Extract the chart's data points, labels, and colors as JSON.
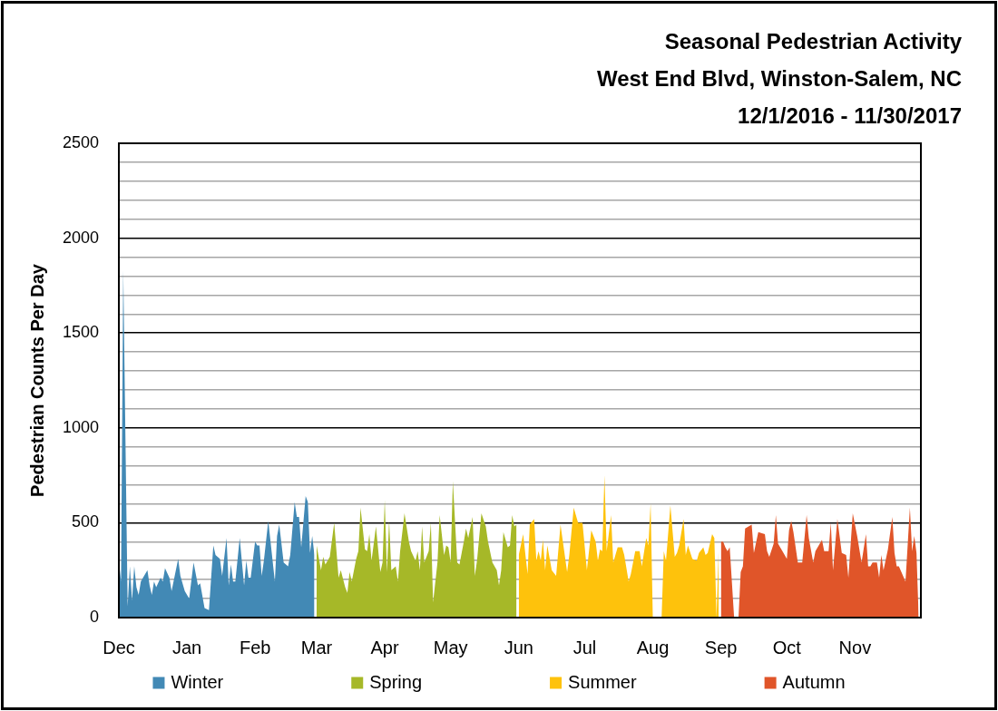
{
  "chart_data": {
    "type": "area",
    "title": "Seasonal Pedestrian Activity\nWest End Blvd, Winston-Salem, NC\n12/1/2016 - 11/30/2017",
    "ylabel": "Pedestrian Counts Per Day",
    "xlim": [
      "2016-12-01",
      "2017-12-01"
    ],
    "xticks": [
      {
        "value": "2016-12-01",
        "label": "Dec"
      },
      {
        "value": "2017-01-01",
        "label": "Jan"
      },
      {
        "value": "2017-02-01",
        "label": "Feb"
      },
      {
        "value": "2017-03-01",
        "label": "Mar"
      },
      {
        "value": "2017-04-01",
        "label": "Apr"
      },
      {
        "value": "2017-05-01",
        "label": "May"
      },
      {
        "value": "2017-06-01",
        "label": "Jun"
      },
      {
        "value": "2017-07-01",
        "label": "Jul"
      },
      {
        "value": "2017-08-01",
        "label": "Aug"
      },
      {
        "value": "2017-09-01",
        "label": "Sep"
      },
      {
        "value": "2017-10-01",
        "label": "Oct"
      },
      {
        "value": "2017-11-01",
        "label": "Nov"
      }
    ],
    "ylim": [
      0,
      2500
    ],
    "yticks": [
      0,
      {
        "value": 100,
        "label": null
      },
      {
        "value": 200,
        "label": null
      },
      {
        "value": 300,
        "label": null
      },
      {
        "value": 400,
        "label": null
      },
      500,
      {
        "value": 600,
        "label": null
      },
      {
        "value": 700,
        "label": null
      },
      {
        "value": 800,
        "label": null
      },
      {
        "value": 900,
        "label": null
      },
      1000,
      {
        "value": 1100,
        "label": null
      },
      {
        "value": 1200,
        "label": null
      },
      {
        "value": 1300,
        "label": null
      },
      {
        "value": 1400,
        "label": null
      },
      1500,
      {
        "value": 1600,
        "label": null
      },
      {
        "value": 1700,
        "label": null
      },
      {
        "value": 1800,
        "label": null
      },
      {
        "value": 1900,
        "label": null
      },
      2000,
      {
        "value": 2100,
        "label": null
      },
      {
        "value": 2200,
        "label": null
      },
      {
        "value": 2300,
        "label": null
      },
      {
        "value": 2400,
        "label": null
      },
      2500
    ],
    "grid": "y",
    "legend": "bottom",
    "series": [
      {
        "name": "Winter",
        "color": "#4289b5",
        "x": [
          "2016-12-01",
          "2016-12-02",
          "2016-12-03",
          "2016-12-05",
          "2016-12-06",
          "2016-12-07",
          "2016-12-08",
          "2016-12-09",
          "2016-12-10",
          "2016-12-11",
          "2016-12-12",
          "2016-12-14",
          "2016-12-15",
          "2016-12-16",
          "2016-12-17",
          "2016-12-18",
          "2016-12-20",
          "2016-12-21",
          "2016-12-22",
          "2016-12-24",
          "2016-12-25",
          "2016-12-28",
          "2016-12-29",
          "2016-12-31",
          "2017-01-02",
          "2017-01-04",
          "2017-01-06",
          "2017-01-07",
          "2017-01-09",
          "2017-01-11",
          "2017-01-13",
          "2017-01-14",
          "2017-01-16",
          "2017-01-17",
          "2017-01-19",
          "2017-01-20",
          "2017-01-21",
          "2017-01-22",
          "2017-01-23",
          "2017-01-25",
          "2017-01-27",
          "2017-01-28",
          "2017-01-29",
          "2017-01-30",
          "2017-02-01",
          "2017-02-02",
          "2017-02-03",
          "2017-02-04",
          "2017-02-05",
          "2017-02-07",
          "2017-02-10",
          "2017-02-11",
          "2017-02-12",
          "2017-02-14",
          "2017-02-16",
          "2017-02-17",
          "2017-02-19",
          "2017-02-20",
          "2017-02-21",
          "2017-02-22",
          "2017-02-24",
          "2017-02-25",
          "2017-02-26",
          "2017-02-27",
          "2017-02-28"
        ],
        "values": [
          300,
          190,
          1830,
          60,
          270,
          90,
          270,
          160,
          120,
          190,
          210,
          250,
          170,
          120,
          190,
          160,
          210,
          190,
          260,
          210,
          140,
          310,
          220,
          140,
          100,
          290,
          170,
          180,
          50,
          40,
          380,
          330,
          310,
          220,
          420,
          170,
          280,
          190,
          190,
          420,
          170,
          300,
          210,
          210,
          400,
          380,
          380,
          220,
          300,
          510,
          190,
          430,
          490,
          290,
          270,
          330,
          610,
          530,
          530,
          370,
          640,
          610,
          340,
          430,
          330
        ]
      },
      {
        "name": "Spring",
        "color": "#a6b828",
        "x": [
          "2017-03-01",
          "2017-03-03",
          "2017-03-04",
          "2017-03-05",
          "2017-03-07",
          "2017-03-09",
          "2017-03-11",
          "2017-03-12",
          "2017-03-14",
          "2017-03-15",
          "2017-03-16",
          "2017-03-17",
          "2017-03-19",
          "2017-03-20",
          "2017-03-21",
          "2017-03-23",
          "2017-03-24",
          "2017-03-25",
          "2017-03-26",
          "2017-03-28",
          "2017-03-30",
          "2017-03-31",
          "2017-04-01",
          "2017-04-02",
          "2017-04-03",
          "2017-04-04",
          "2017-04-06",
          "2017-04-07",
          "2017-04-08",
          "2017-04-10",
          "2017-04-12",
          "2017-04-13",
          "2017-04-15",
          "2017-04-16",
          "2017-04-17",
          "2017-04-18",
          "2017-04-19",
          "2017-04-21",
          "2017-04-22",
          "2017-04-23",
          "2017-04-25",
          "2017-04-26",
          "2017-04-28",
          "2017-04-29",
          "2017-04-30",
          "2017-05-01",
          "2017-05-02",
          "2017-05-04",
          "2017-05-05",
          "2017-05-07",
          "2017-05-08",
          "2017-05-09",
          "2017-05-11",
          "2017-05-12",
          "2017-05-13",
          "2017-05-15",
          "2017-05-17",
          "2017-05-18",
          "2017-05-20",
          "2017-05-22",
          "2017-05-23",
          "2017-05-24",
          "2017-05-25",
          "2017-05-27",
          "2017-05-28",
          "2017-05-29",
          "2017-05-30",
          "2017-05-31"
        ],
        "values": [
          380,
          250,
          320,
          280,
          320,
          500,
          210,
          250,
          160,
          130,
          240,
          190,
          310,
          350,
          580,
          360,
          350,
          440,
          300,
          480,
          240,
          290,
          620,
          240,
          510,
          250,
          270,
          190,
          350,
          550,
          400,
          350,
          300,
          350,
          250,
          480,
          290,
          350,
          500,
          80,
          290,
          540,
          330,
          380,
          370,
          290,
          720,
          290,
          280,
          400,
          470,
          420,
          530,
          220,
          300,
          550,
          480,
          400,
          290,
          250,
          170,
          250,
          450,
          370,
          380,
          540,
          480,
          490
        ]
      },
      {
        "name": "Summer",
        "color": "#fec20c",
        "x": [
          "2017-06-01",
          "2017-06-03",
          "2017-06-05",
          "2017-06-06",
          "2017-06-08",
          "2017-06-09",
          "2017-06-10",
          "2017-06-11",
          "2017-06-12",
          "2017-06-13",
          "2017-06-14",
          "2017-06-16",
          "2017-06-18",
          "2017-06-20",
          "2017-06-23",
          "2017-06-24",
          "2017-06-26",
          "2017-06-28",
          "2017-06-30",
          "2017-07-02",
          "2017-07-04",
          "2017-07-06",
          "2017-07-07",
          "2017-07-08",
          "2017-07-09",
          "2017-07-10",
          "2017-07-11",
          "2017-07-13",
          "2017-07-14",
          "2017-07-16",
          "2017-07-18",
          "2017-07-19",
          "2017-07-21",
          "2017-07-22",
          "2017-07-24",
          "2017-07-26",
          "2017-07-27",
          "2017-07-29",
          "2017-07-30",
          "2017-07-31",
          "2017-08-01",
          "2017-08-05",
          "2017-08-06",
          "2017-08-07",
          "2017-08-09",
          "2017-08-11",
          "2017-08-12",
          "2017-08-13",
          "2017-08-15",
          "2017-08-16",
          "2017-08-17",
          "2017-08-19",
          "2017-08-21",
          "2017-08-22",
          "2017-08-24",
          "2017-08-25",
          "2017-08-26",
          "2017-08-28",
          "2017-08-29",
          "2017-08-30",
          "2017-08-31"
        ],
        "values": [
          330,
          440,
          230,
          490,
          520,
          300,
          350,
          300,
          410,
          250,
          380,
          250,
          220,
          490,
          240,
          330,
          580,
          500,
          500,
          250,
          460,
          400,
          300,
          360,
          350,
          750,
          350,
          540,
          290,
          370,
          370,
          330,
          190,
          230,
          350,
          350,
          270,
          420,
          380,
          600,
          0,
          0,
          350,
          300,
          590,
          320,
          340,
          380,
          520,
          330,
          380,
          310,
          300,
          340,
          370,
          330,
          340,
          440,
          420,
          0,
          370
        ]
      },
      {
        "name": "Autumn",
        "color": "#e05529",
        "x": [
          "2017-09-01",
          "2017-09-02",
          "2017-09-03",
          "2017-09-04",
          "2017-09-05",
          "2017-09-07",
          "2017-09-09",
          "2017-09-10",
          "2017-09-11",
          "2017-09-12",
          "2017-09-15",
          "2017-09-16",
          "2017-09-18",
          "2017-09-21",
          "2017-09-22",
          "2017-09-23",
          "2017-09-25",
          "2017-09-26",
          "2017-09-27",
          "2017-09-29",
          "2017-10-01",
          "2017-10-02",
          "2017-10-03",
          "2017-10-04",
          "2017-10-06",
          "2017-10-08",
          "2017-10-10",
          "2017-10-11",
          "2017-10-13",
          "2017-10-14",
          "2017-10-17",
          "2017-10-18",
          "2017-10-20",
          "2017-10-21",
          "2017-10-22",
          "2017-10-24",
          "2017-10-26",
          "2017-10-28",
          "2017-10-29",
          "2017-10-31",
          "2017-11-02",
          "2017-11-04",
          "2017-11-06",
          "2017-11-07",
          "2017-11-08",
          "2017-11-09",
          "2017-11-11",
          "2017-11-12",
          "2017-11-13",
          "2017-11-14",
          "2017-11-16",
          "2017-11-18",
          "2017-11-19",
          "2017-11-20",
          "2017-11-21",
          "2017-11-24",
          "2017-11-26",
          "2017-11-27",
          "2017-11-28",
          "2017-11-29",
          "2017-11-30"
        ],
        "values": [
          400,
          400,
          370,
          350,
          370,
          0,
          0,
          240,
          270,
          470,
          490,
          340,
          450,
          440,
          350,
          320,
          390,
          540,
          390,
          350,
          310,
          460,
          510,
          450,
          290,
          290,
          540,
          420,
          290,
          350,
          410,
          350,
          350,
          500,
          250,
          520,
          340,
          330,
          210,
          550,
          430,
          290,
          440,
          270,
          270,
          290,
          290,
          210,
          330,
          250,
          360,
          530,
          340,
          270,
          270,
          190,
          580,
          350,
          430,
          340,
          0
        ]
      }
    ]
  }
}
